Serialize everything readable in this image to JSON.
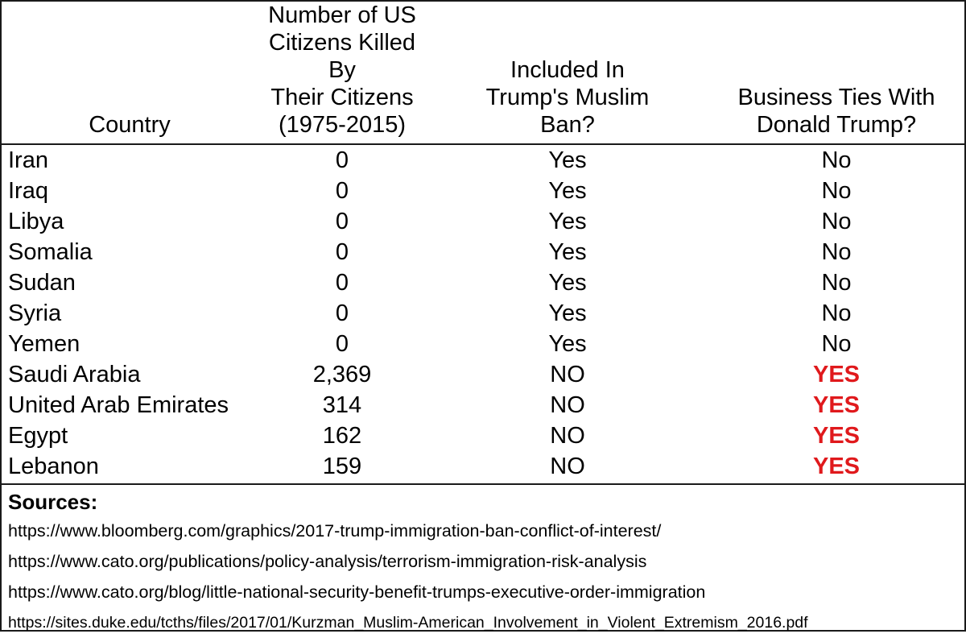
{
  "table": {
    "headers": [
      "Country",
      "Number of US Citizens Killed By Their Citizens (1975-2015)",
      "Included In Trump's Muslim Ban?",
      "Business Ties With Donald Trump?"
    ],
    "header_lines": [
      [
        "Country"
      ],
      [
        "Number of US",
        "Citizens Killed By",
        "Their Citizens",
        "(1975-2015)"
      ],
      [
        "Included In",
        "Trump's Muslim",
        "Ban?"
      ],
      [
        "Business Ties With",
        "Donald Trump?"
      ]
    ],
    "rows": [
      {
        "country": "Iran",
        "killed": "0",
        "ban": "Yes",
        "ties": "No"
      },
      {
        "country": "Iraq",
        "killed": "0",
        "ban": "Yes",
        "ties": "No"
      },
      {
        "country": "Libya",
        "killed": "0",
        "ban": "Yes",
        "ties": "No"
      },
      {
        "country": "Somalia",
        "killed": "0",
        "ban": "Yes",
        "ties": "No"
      },
      {
        "country": "Sudan",
        "killed": "0",
        "ban": "Yes",
        "ties": "No"
      },
      {
        "country": "Syria",
        "killed": "0",
        "ban": "Yes",
        "ties": "No"
      },
      {
        "country": "Yemen",
        "killed": "0",
        "ban": "Yes",
        "ties": "No"
      },
      {
        "country": "Saudi Arabia",
        "killed": "2,369",
        "ban": "NO",
        "ties": "YES"
      },
      {
        "country": "United Arab Emirates",
        "killed": "314",
        "ban": "NO",
        "ties": "YES"
      },
      {
        "country": "Egypt",
        "killed": "162",
        "ban": "NO",
        "ties": "YES"
      },
      {
        "country": "Lebanon",
        "killed": "159",
        "ban": "NO",
        "ties": "YES"
      }
    ]
  },
  "sources": {
    "title": "Sources:",
    "links": [
      "https://www.bloomberg.com/graphics/2017-trump-immigration-ban-conflict-of-interest/",
      "https://www.cato.org/publications/policy-analysis/terrorism-immigration-risk-analysis",
      "https://www.cato.org/blog/little-national-security-benefit-trumps-executive-order-immigration",
      "https://sites.duke.edu/tcths/files/2017/01/Kurzman_Muslim-American_Involvement_in_Violent_Extremism_2016.pdf"
    ]
  },
  "colors": {
    "text": "#000000",
    "highlight_yes": "#e0191c",
    "border": "#1a1a1a"
  }
}
